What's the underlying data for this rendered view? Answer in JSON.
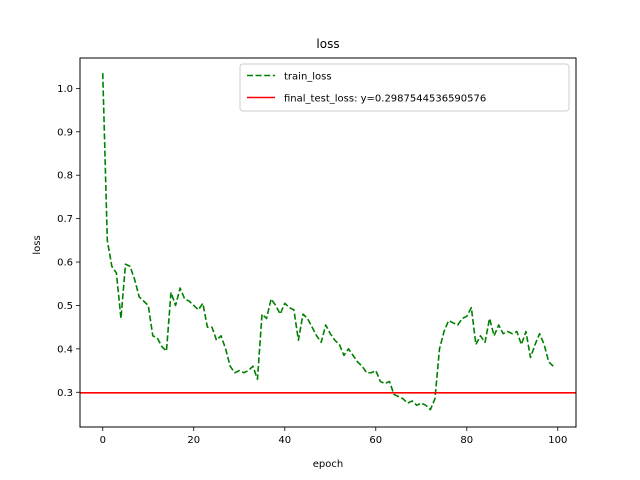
{
  "chart_data": {
    "type": "line",
    "title": "loss",
    "xlabel": "epoch",
    "ylabel": "loss",
    "xlim": [
      -5,
      104
    ],
    "ylim": [
      0.22,
      1.07
    ],
    "xticks": [
      0,
      20,
      40,
      60,
      80,
      100
    ],
    "yticks": [
      0.3,
      0.4,
      0.5,
      0.6,
      0.7,
      0.8,
      0.9,
      1.0
    ],
    "xtick_labels": [
      "0",
      "20",
      "40",
      "60",
      "80",
      "100"
    ],
    "ytick_labels": [
      "0.3",
      "0.4",
      "0.5",
      "0.6",
      "0.7",
      "0.8",
      "0.9",
      "1.0"
    ],
    "grid": false,
    "legend_position": "top-right",
    "series": [
      {
        "name": "train_loss",
        "color": "#008000",
        "style": "dashed",
        "x": [
          0,
          1,
          2,
          3,
          4,
          5,
          6,
          7,
          8,
          9,
          10,
          11,
          12,
          13,
          14,
          15,
          16,
          17,
          18,
          19,
          20,
          21,
          22,
          23,
          24,
          25,
          26,
          27,
          28,
          29,
          30,
          31,
          32,
          33,
          34,
          35,
          36,
          37,
          38,
          39,
          40,
          41,
          42,
          43,
          44,
          45,
          46,
          47,
          48,
          49,
          50,
          51,
          52,
          53,
          54,
          55,
          56,
          57,
          58,
          59,
          60,
          61,
          62,
          63,
          64,
          65,
          66,
          67,
          68,
          69,
          70,
          71,
          72,
          73,
          74,
          75,
          76,
          77,
          78,
          79,
          80,
          81,
          82,
          83,
          84,
          85,
          86,
          87,
          88,
          89,
          90,
          91,
          92,
          93,
          94,
          95,
          96,
          97,
          98,
          99
        ],
        "values": [
          1.035,
          0.65,
          0.59,
          0.575,
          0.47,
          0.595,
          0.59,
          0.56,
          0.52,
          0.51,
          0.5,
          0.43,
          0.425,
          0.405,
          0.395,
          0.53,
          0.5,
          0.54,
          0.515,
          0.51,
          0.5,
          0.49,
          0.505,
          0.45,
          0.45,
          0.42,
          0.43,
          0.4,
          0.36,
          0.345,
          0.35,
          0.345,
          0.35,
          0.36,
          0.33,
          0.48,
          0.47,
          0.515,
          0.5,
          0.48,
          0.505,
          0.495,
          0.49,
          0.42,
          0.48,
          0.47,
          0.45,
          0.43,
          0.415,
          0.455,
          0.435,
          0.42,
          0.41,
          0.385,
          0.4,
          0.385,
          0.37,
          0.36,
          0.345,
          0.345,
          0.35,
          0.325,
          0.32,
          0.325,
          0.295,
          0.29,
          0.285,
          0.275,
          0.28,
          0.27,
          0.275,
          0.27,
          0.26,
          0.285,
          0.4,
          0.44,
          0.465,
          0.46,
          0.455,
          0.47,
          0.475,
          0.495,
          0.41,
          0.43,
          0.415,
          0.47,
          0.43,
          0.455,
          0.435,
          0.44,
          0.435,
          0.44,
          0.41,
          0.44,
          0.38,
          0.41,
          0.435,
          0.41,
          0.37,
          0.36
        ]
      },
      {
        "name": "final_test_loss: y=0.2987544536590576",
        "color": "#ff0000",
        "style": "solid",
        "type": "hline",
        "y": 0.2987544536590576
      }
    ]
  }
}
